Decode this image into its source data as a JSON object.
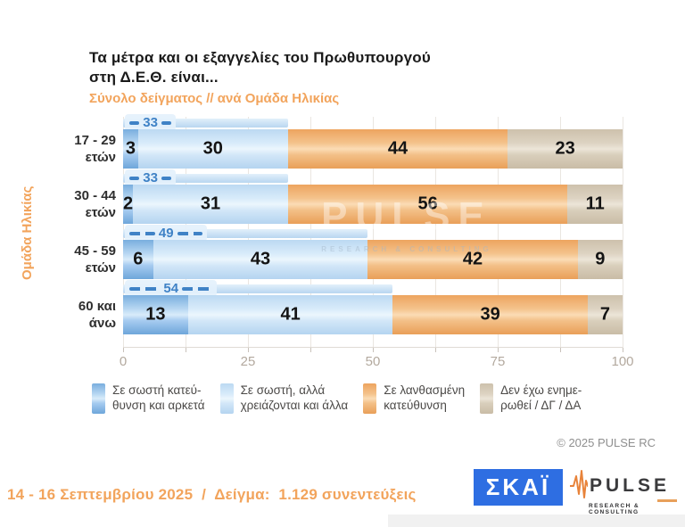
{
  "title": {
    "line1": "Τα μέτρα και οι εξαγγελίες του Πρωθυπουργού",
    "line2": "στη Δ.Ε.Θ. είναι...",
    "subtitle": "Σύνολο δείγματος // ανά Ομάδα Ηλικίας"
  },
  "y_axis_label": "Ομάδα Ηλικίας",
  "chart_data": {
    "type": "bar",
    "orientation": "horizontal-stacked",
    "categories": [
      "17 - 29 ετών",
      "30 - 44 ετών",
      "45 - 59 ετών",
      "60 και άνω"
    ],
    "category_lines": [
      [
        "17 - 29",
        "ετών"
      ],
      [
        "30 - 44",
        "ετών"
      ],
      [
        "45 - 59",
        "ετών"
      ],
      [
        "60 και",
        "άνω"
      ]
    ],
    "series": [
      {
        "name": "Σε σωστή κατεύθυνση και αρκετά",
        "color": "#8bbde9",
        "values": [
          3,
          2,
          6,
          13
        ]
      },
      {
        "name": "Σε σωστή, αλλά χρειάζονται και άλλα",
        "color": "#cde4f7",
        "values": [
          30,
          31,
          43,
          41
        ]
      },
      {
        "name": "Σε λανθασμένη κατεύθυνση",
        "color": "#f4c08b",
        "values": [
          44,
          56,
          42,
          39
        ]
      },
      {
        "name": "Δεν έχω ενημερωθεί / ΔΓ / ΔΑ",
        "color": "#d8cdbb",
        "values": [
          23,
          11,
          9,
          7
        ]
      }
    ],
    "subtotal_markers": {
      "note": "sum of the two blue segments shown as dashed marker above each bar",
      "values": [
        33,
        33,
        49,
        54
      ]
    },
    "xlim": [
      0,
      100
    ],
    "x_ticks": [
      0,
      25,
      50,
      75,
      100
    ],
    "minor_tick_step": 12.5,
    "legend_position": "bottom"
  },
  "legend": {
    "items": [
      {
        "lines": "Σε σωστή κατεύ-\nθυνση και αρκετά",
        "color": "#8bbde9"
      },
      {
        "lines": "Σε σωστή, αλλά\nχρειάζονται και άλλα",
        "color": "#cde4f7"
      },
      {
        "lines": "Σε λανθασμένη\nκατεύθυνση",
        "color": "#f4c08b"
      },
      {
        "lines": "Δεν έχω ενημε-\nρωθεί / ΔΓ / ΔΑ",
        "color": "#d8cdbb"
      }
    ]
  },
  "watermark": {
    "name": "PULSE",
    "tagline": "RESEARCH & CONSULTING"
  },
  "copyright": "© 2025 PULSE RC",
  "footer": {
    "text": "14 - 16 Σεπτεμβρίου 2025  /  Δείγμα:  1.129 συνεντεύξεις"
  },
  "logos": {
    "skai": {
      "label": "ΣΚΑΪ",
      "bg_color": "#2e6ee2"
    },
    "pulse": {
      "name": "PULSE",
      "tagline": "RESEARCH & CONSULTING",
      "accent_color": "#e8833a"
    }
  },
  "colors": {
    "accent_orange_text": "#f2a45c",
    "marker_blue": "#3f82c6",
    "axis_label_gray": "#b3a99e"
  }
}
